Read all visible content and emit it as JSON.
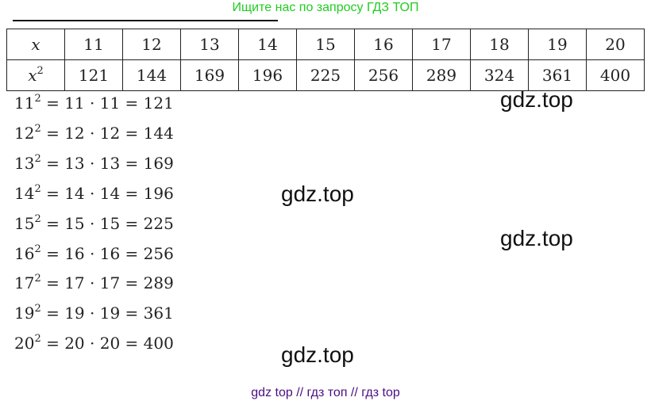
{
  "header": {
    "link_text": "Ищите нас по запросу ГДЗ ТОП"
  },
  "table": {
    "row1_label": "x",
    "row2_label_base": "x",
    "row2_label_exp": "2",
    "x": [
      "11",
      "12",
      "13",
      "14",
      "15",
      "16",
      "17",
      "18",
      "19",
      "20"
    ],
    "x_squared": [
      "121",
      "144",
      "169",
      "196",
      "225",
      "256",
      "289",
      "324",
      "361",
      "400"
    ]
  },
  "equations": [
    {
      "base": "11",
      "exp": "2",
      "rest": " = 11 · 11 = 121"
    },
    {
      "base": "12",
      "exp": "2",
      "rest": " = 12 · 12 = 144"
    },
    {
      "base": "13",
      "exp": "2",
      "rest": " = 13 · 13 = 169"
    },
    {
      "base": "14",
      "exp": "2",
      "rest": " = 14 · 14 = 196"
    },
    {
      "base": "15",
      "exp": "2",
      "rest": " = 15 · 15 = 225"
    },
    {
      "base": "16",
      "exp": "2",
      "rest": " = 16 · 16 = 256"
    },
    {
      "base": "17",
      "exp": "2",
      "rest": " = 17 · 17 = 289"
    },
    {
      "base": "19",
      "exp": "2",
      "rest": " = 19 · 19 = 361"
    },
    {
      "base": "20",
      "exp": "2",
      "rest": " = 20 · 20 = 400"
    }
  ],
  "watermarks": [
    "gdz.top",
    "gdz.top",
    "gdz.top",
    "gdz.top"
  ],
  "footer": {
    "text": "gdz top  //  гдз топ  //  гдз top"
  },
  "colors": {
    "header_link": "#22cc22",
    "footer": "#4b0f82"
  }
}
